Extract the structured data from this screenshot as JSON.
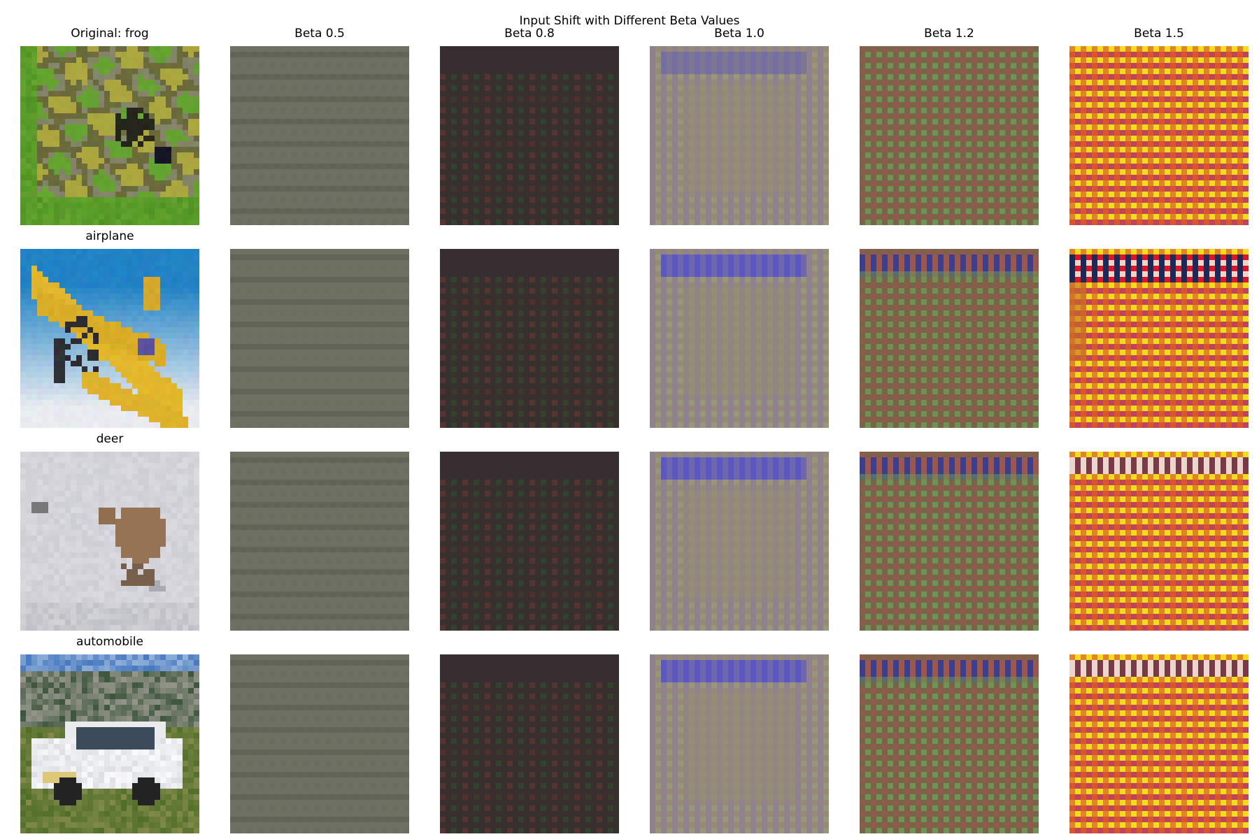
{
  "figure": {
    "title": "Input Shift with Different Beta Values",
    "column_titles": [
      "Original: frog",
      "Beta 0.5",
      "Beta 0.8",
      "Beta 1.0",
      "Beta 1.2",
      "Beta 1.5"
    ],
    "row_labels": [
      "",
      "airplane",
      "deer",
      "automobile"
    ],
    "rows": [
      {
        "subject": "frog"
      },
      {
        "subject": "airplane"
      },
      {
        "subject": "deer"
      },
      {
        "subject": "automobile"
      }
    ],
    "betas": [
      0.5,
      0.8,
      1.0,
      1.2,
      1.5
    ],
    "palette": {
      "beta_0_5_base": "#6d7062",
      "beta_0_8_base": "#37302f",
      "beta_0_8_dot_red": "#5a3531",
      "beta_0_8_dot_green": "#30452e",
      "beta_1_0_base": "#948a76",
      "beta_1_0_dot_purple": "#8d7e98",
      "beta_1_0_dot_green": "#9ca07a",
      "beta_1_0_top_blue": "#4d4cd8",
      "beta_1_2_base": "#7a6349",
      "beta_1_2_dot_red": "#9a5750",
      "beta_1_2_dot_green": "#6d9c54",
      "beta_1_2_top_blue": "#3d3f8c",
      "beta_1_5_base": "#d8562d",
      "beta_1_5_dot_yellow": "#f2dc1c",
      "beta_1_5_dot_purple": "#b2347a",
      "beta_1_5_top_white": "#ecd6cc",
      "beta_1_5_top_navy": "#1c2a58"
    }
  }
}
